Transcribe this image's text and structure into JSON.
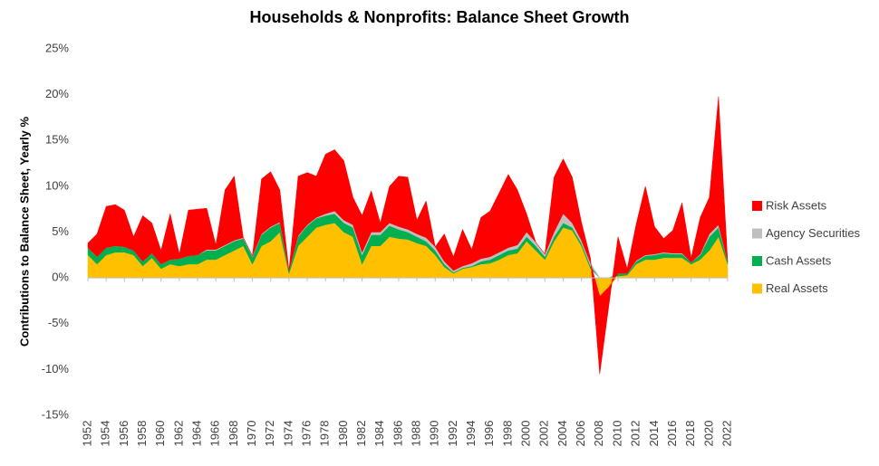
{
  "chart_data": {
    "type": "stacked_area",
    "title": "Households & Nonprofits: Balance Sheet Growth",
    "y_label": "Contributions to Balance Sheet, Yearly %",
    "x": [
      1952,
      1953,
      1954,
      1955,
      1956,
      1957,
      1958,
      1959,
      1960,
      1961,
      1962,
      1963,
      1964,
      1965,
      1966,
      1967,
      1968,
      1969,
      1970,
      1971,
      1972,
      1973,
      1974,
      1975,
      1976,
      1977,
      1978,
      1979,
      1980,
      1981,
      1982,
      1983,
      1984,
      1985,
      1986,
      1987,
      1988,
      1989,
      1990,
      1991,
      1992,
      1993,
      1994,
      1995,
      1996,
      1997,
      1998,
      1999,
      2000,
      2001,
      2002,
      2003,
      2004,
      2005,
      2006,
      2007,
      2008,
      2009,
      2010,
      2011,
      2012,
      2013,
      2014,
      2015,
      2016,
      2017,
      2018,
      2019,
      2020,
      2021,
      2022
    ],
    "series": [
      {
        "name": "Real Assets",
        "color": "#ffc000",
        "values": [
          2.5,
          1.5,
          2.5,
          2.8,
          2.8,
          2.5,
          1.3,
          2.2,
          1.0,
          1.5,
          1.3,
          1.5,
          1.5,
          2.0,
          2.0,
          2.5,
          3.0,
          3.5,
          1.5,
          3.5,
          4.0,
          5.0,
          0.5,
          3.5,
          4.5,
          5.5,
          5.8,
          6.0,
          5.0,
          4.5,
          1.5,
          3.5,
          3.5,
          4.5,
          4.3,
          4.2,
          3.8,
          3.5,
          2.5,
          1.2,
          0.5,
          1.0,
          1.2,
          1.5,
          1.6,
          2.0,
          2.5,
          2.7,
          4.0,
          3.0,
          2.0,
          4.0,
          5.5,
          5.2,
          3.5,
          1.0,
          -2.0,
          -1.0,
          0.2,
          0.3,
          1.5,
          2.0,
          2.0,
          2.2,
          2.2,
          2.2,
          1.5,
          2.0,
          3.0,
          4.5,
          1.5
        ]
      },
      {
        "name": "Cash Assets",
        "color": "#00b050",
        "values": [
          0.8,
          0.8,
          0.8,
          0.7,
          0.6,
          0.5,
          0.5,
          0.5,
          0.5,
          0.5,
          0.8,
          0.9,
          1.0,
          1.0,
          1.0,
          1.0,
          1.0,
          0.8,
          0.8,
          1.2,
          1.5,
          1.0,
          0.3,
          1.0,
          1.2,
          1.0,
          1.0,
          1.0,
          1.0,
          1.0,
          1.0,
          1.2,
          1.2,
          1.2,
          1.0,
          0.8,
          0.7,
          0.5,
          0.5,
          0.3,
          0.1,
          0.1,
          0.1,
          0.3,
          0.4,
          0.5,
          0.5,
          0.5,
          0.5,
          0.5,
          0.3,
          0.5,
          0.5,
          0.3,
          0.3,
          0.3,
          0,
          0,
          0.3,
          0.2,
          0.3,
          0.4,
          0.5,
          0.5,
          0.4,
          0.4,
          0.2,
          0.5,
          1.5,
          1.0,
          0.3
        ]
      },
      {
        "name": "Agency Securities",
        "color": "#bfbfbf",
        "values": [
          0,
          0,
          0,
          0,
          0,
          0,
          0,
          0,
          0,
          0,
          0,
          0,
          0,
          0.1,
          0.1,
          0.1,
          0.1,
          0.1,
          0.1,
          0.1,
          0.1,
          0.1,
          0,
          0.1,
          0.1,
          0.1,
          0.2,
          0.3,
          0.3,
          0.3,
          0.3,
          0.3,
          0.3,
          0.3,
          0.3,
          0.3,
          0.3,
          0.4,
          0.4,
          0.3,
          0.2,
          0.2,
          0.3,
          0.3,
          0.3,
          0.3,
          0.3,
          0.4,
          0.5,
          0.4,
          0.3,
          0.5,
          1.0,
          0.5,
          0.3,
          0.3,
          0,
          0,
          0,
          0,
          0.1,
          0.1,
          0.1,
          0.1,
          0.1,
          0.1,
          0,
          0.1,
          0.3,
          0.3,
          0
        ]
      },
      {
        "name": "Risk Assets",
        "color": "#ff0000",
        "values": [
          0.5,
          2.5,
          4.5,
          4.5,
          4.0,
          1.5,
          5.0,
          3.3,
          1.5,
          5.0,
          0.5,
          5.0,
          5.0,
          4.5,
          0.5,
          6.0,
          7.0,
          0,
          0,
          6.0,
          6.0,
          3.5,
          0,
          6.5,
          5.7,
          4.5,
          6.5,
          6.7,
          6.5,
          3.0,
          4.0,
          4.5,
          1.0,
          4.0,
          5.5,
          5.7,
          1.5,
          4.0,
          0,
          3.0,
          1.5,
          4.0,
          1.5,
          4.5,
          5.0,
          6.5,
          8.0,
          6.0,
          2.0,
          0,
          0,
          6.0,
          6.0,
          5.0,
          2.0,
          0.5,
          -8.5,
          -2.0,
          4.0,
          0.5,
          4.0,
          7.5,
          3.0,
          1.5,
          2.5,
          5.5,
          0.5,
          4.0,
          4.0,
          14.0,
          0
        ]
      }
    ],
    "ylim": [
      -15,
      25
    ],
    "yticks": [
      {
        "value": -15,
        "label": "-15%"
      },
      {
        "value": -10,
        "label": "-10%"
      },
      {
        "value": -5,
        "label": "-5%"
      },
      {
        "value": 0,
        "label": "0%"
      },
      {
        "value": 5,
        "label": "5%"
      },
      {
        "value": 10,
        "label": "10%"
      },
      {
        "value": 15,
        "label": "15%"
      },
      {
        "value": 20,
        "label": "20%"
      },
      {
        "value": 25,
        "label": "25%"
      }
    ],
    "xlim": [
      1952,
      2022
    ],
    "xticks": [
      1952,
      1954,
      1956,
      1958,
      1960,
      1962,
      1964,
      1966,
      1968,
      1970,
      1972,
      1974,
      1976,
      1978,
      1980,
      1982,
      1984,
      1986,
      1988,
      1990,
      1992,
      1994,
      1996,
      1998,
      2000,
      2002,
      2004,
      2006,
      2008,
      2010,
      2012,
      2014,
      2016,
      2018,
      2020,
      2022
    ],
    "legend": "right"
  }
}
